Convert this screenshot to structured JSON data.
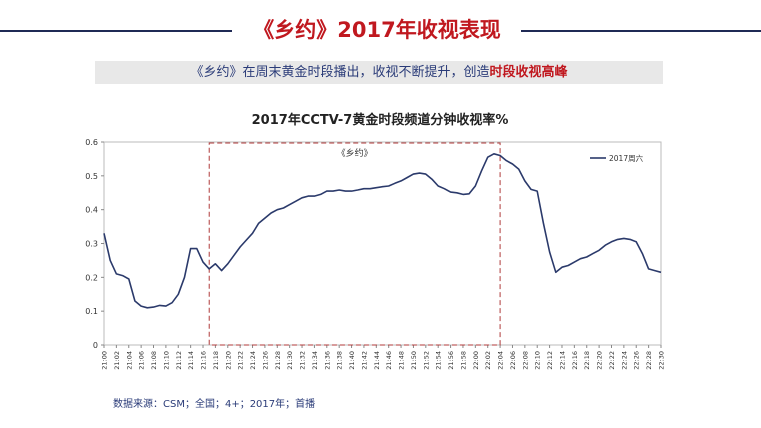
{
  "header": {
    "title": "《乡约》2017年收视表现"
  },
  "subtitle": {
    "text_before": "《乡约》在周末黄金时段播出，收视不断提升，创造",
    "highlight": "时段收视高峰",
    "highlight_color": "#c0181f"
  },
  "footer": {
    "source": "数据来源：CSM；全国；4+；2017年；首播"
  },
  "colors": {
    "accent_red": "#c0181f",
    "navy": "#1f2a55",
    "series_line": "#2b3a6b"
  },
  "chart_data": {
    "type": "line",
    "title": "2017年CCTV-7黄金时段频道分钟收视率%",
    "xlabel": "",
    "ylabel": "",
    "ylim": [
      0,
      0.6
    ],
    "yticks": [
      "0",
      "0.1",
      "0.2",
      "0.3",
      "0.4",
      "0.5",
      "0.6"
    ],
    "grid": false,
    "legend_position": "top-right",
    "x_start": "21:00",
    "x_end": "22:30",
    "x_tick_labels": [
      "21:00",
      "21:02",
      "21:04",
      "21:06",
      "21:08",
      "21:10",
      "21:12",
      "21:14",
      "21:16",
      "21:18",
      "21:20",
      "21:22",
      "21:24",
      "21:26",
      "21:28",
      "21:30",
      "21:32",
      "21:34",
      "21:36",
      "21:38",
      "21:40",
      "21:42",
      "21:44",
      "21:46",
      "21:48",
      "21:50",
      "21:52",
      "21:54",
      "21:56",
      "21:58",
      "22:00",
      "22:02",
      "22:04",
      "22:06",
      "22:08",
      "22:10",
      "22:12",
      "22:14",
      "22:16",
      "22:18",
      "22:20",
      "22:22",
      "22:24",
      "22:26",
      "22:28",
      "22:30"
    ],
    "highlight_region": {
      "label": "《乡约》",
      "start": "21:17",
      "end": "22:04"
    },
    "series": [
      {
        "name": "2017周六",
        "values": [
          0.33,
          0.25,
          0.21,
          0.205,
          0.195,
          0.13,
          0.115,
          0.11,
          0.112,
          0.117,
          0.115,
          0.125,
          0.15,
          0.2,
          0.285,
          0.285,
          0.245,
          0.225,
          0.24,
          0.22,
          0.24,
          0.265,
          0.29,
          0.31,
          0.33,
          0.36,
          0.375,
          0.39,
          0.4,
          0.405,
          0.415,
          0.425,
          0.435,
          0.44,
          0.44,
          0.445,
          0.455,
          0.455,
          0.458,
          0.455,
          0.455,
          0.458,
          0.462,
          0.462,
          0.465,
          0.468,
          0.47,
          0.478,
          0.485,
          0.495,
          0.505,
          0.508,
          0.505,
          0.49,
          0.47,
          0.462,
          0.452,
          0.45,
          0.445,
          0.447,
          0.47,
          0.515,
          0.555,
          0.565,
          0.56,
          0.545,
          0.535,
          0.52,
          0.485,
          0.46,
          0.455,
          0.36,
          0.275,
          0.215,
          0.23,
          0.235,
          0.245,
          0.255,
          0.26,
          0.27,
          0.28,
          0.295,
          0.305,
          0.312,
          0.315,
          0.312,
          0.305,
          0.27,
          0.225,
          0.22,
          0.215
        ]
      }
    ]
  }
}
